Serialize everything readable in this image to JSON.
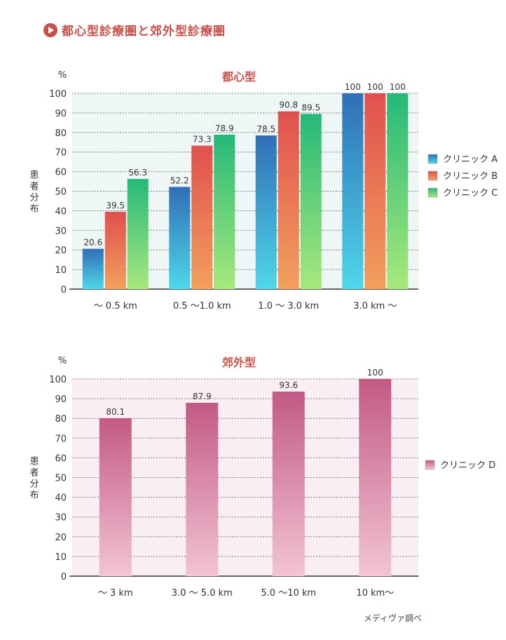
{
  "header": {
    "title": "都心型診療圏と郊外型診療圏"
  },
  "chart_data": [
    {
      "type": "bar",
      "title": "都心型",
      "unit_label": "%",
      "ylabel": "患者分布",
      "xlabel": "",
      "ylim": [
        0,
        100
      ],
      "yticks": [
        "0",
        "10",
        "20",
        "30",
        "40",
        "50",
        "60",
        "70",
        "80",
        "90",
        "100"
      ],
      "categories": [
        "～ 0.5 km",
        "0.5 ～1.0 km",
        "1.0 ～ 3.0 km",
        "3.0 km ～"
      ],
      "series": [
        {
          "name": "クリニック A",
          "values": [
            20.6,
            52.2,
            78.5,
            100
          ],
          "labels": [
            "20.6",
            "52.2",
            "78.5",
            "100"
          ],
          "colors": [
            "#2f6fb6",
            "#4fd7ea"
          ]
        },
        {
          "name": "クリニック B",
          "values": [
            39.5,
            73.3,
            90.8,
            100
          ],
          "labels": [
            "39.5",
            "73.3",
            "90.8",
            "100"
          ],
          "colors": [
            "#e0504e",
            "#f2a05c"
          ]
        },
        {
          "name": "クリニック C",
          "values": [
            56.3,
            78.9,
            89.5,
            100
          ],
          "labels": [
            "56.3",
            "78.9",
            "89.5",
            "100"
          ],
          "colors": [
            "#25b978",
            "#a8e87c"
          ]
        }
      ],
      "legend_position": "right",
      "grid": true,
      "background": "#eef6f6"
    },
    {
      "type": "bar",
      "title": "郊外型",
      "unit_label": "%",
      "ylabel": "患者分布",
      "xlabel": "",
      "ylim": [
        0,
        100
      ],
      "yticks": [
        "0",
        "10",
        "20",
        "30",
        "40",
        "50",
        "60",
        "70",
        "80",
        "90",
        "100"
      ],
      "categories": [
        "～ 3 km",
        "3.0 ～ 5.0 km",
        "5.0 ～10 km",
        "10 km～"
      ],
      "series": [
        {
          "name": "クリニック D",
          "values": [
            80.1,
            87.9,
            93.6,
            100
          ],
          "labels": [
            "80.1",
            "87.9",
            "93.6",
            "100"
          ],
          "colors": [
            "#c25a84",
            "#f2c4d4"
          ]
        }
      ],
      "legend_position": "right",
      "grid": true,
      "background": "#f9eef2"
    }
  ],
  "credit": "メディヴァ調べ"
}
